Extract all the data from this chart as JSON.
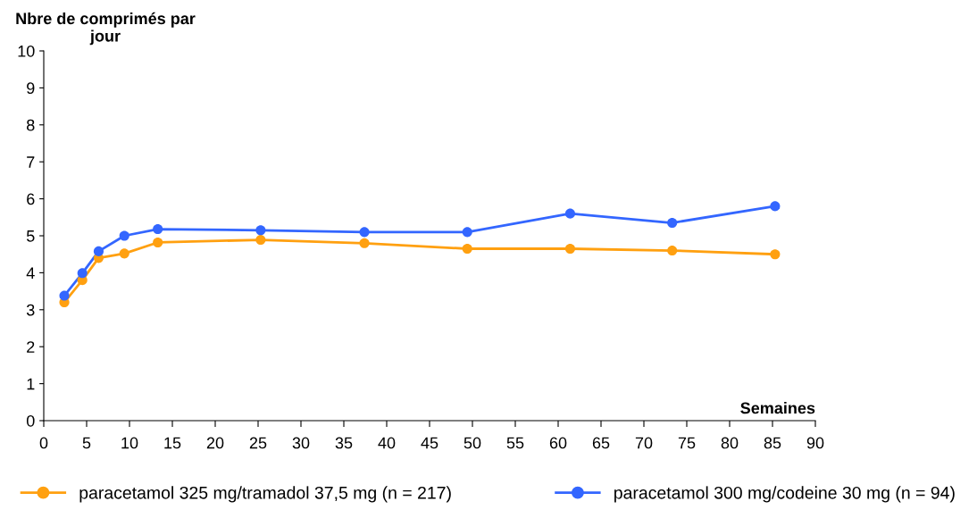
{
  "chart_data": {
    "type": "line",
    "ylabel": "Nbre de comprimés par jour",
    "xlabel": "Semaines",
    "xlim": [
      0,
      90
    ],
    "xticks": [
      0,
      5,
      10,
      15,
      20,
      25,
      30,
      35,
      40,
      45,
      50,
      55,
      60,
      65,
      70,
      75,
      80,
      85,
      90
    ],
    "ylim": [
      0,
      10
    ],
    "yticks": [
      0,
      1,
      2,
      3,
      4,
      5,
      6,
      7,
      8,
      9,
      10
    ],
    "grid": false,
    "legend": "bottom",
    "marker": "circle",
    "line_style": "solid",
    "series": [
      {
        "name": "paracetamol 325 mg/tramadol 37,5 mg (n = 217)",
        "color": "#ffa010",
        "x": [
          2.4,
          4.5,
          6.4,
          9.4,
          13.3,
          25.3,
          37.4,
          49.4,
          61.4,
          73.3,
          85.3
        ],
        "values": [
          3.2,
          3.8,
          4.4,
          4.52,
          4.82,
          4.89,
          4.8,
          4.65,
          4.65,
          4.6,
          4.5
        ]
      },
      {
        "name": "paracetamol 300 mg/codeine 30 mg (n = 94)",
        "color": "#3366ff",
        "x": [
          2.4,
          4.5,
          6.4,
          9.4,
          13.3,
          25.3,
          37.4,
          49.4,
          61.4,
          73.3,
          85.3
        ],
        "values": [
          3.38,
          3.99,
          4.58,
          5.0,
          5.18,
          5.15,
          5.1,
          5.1,
          5.6,
          5.35,
          5.8
        ]
      }
    ]
  }
}
